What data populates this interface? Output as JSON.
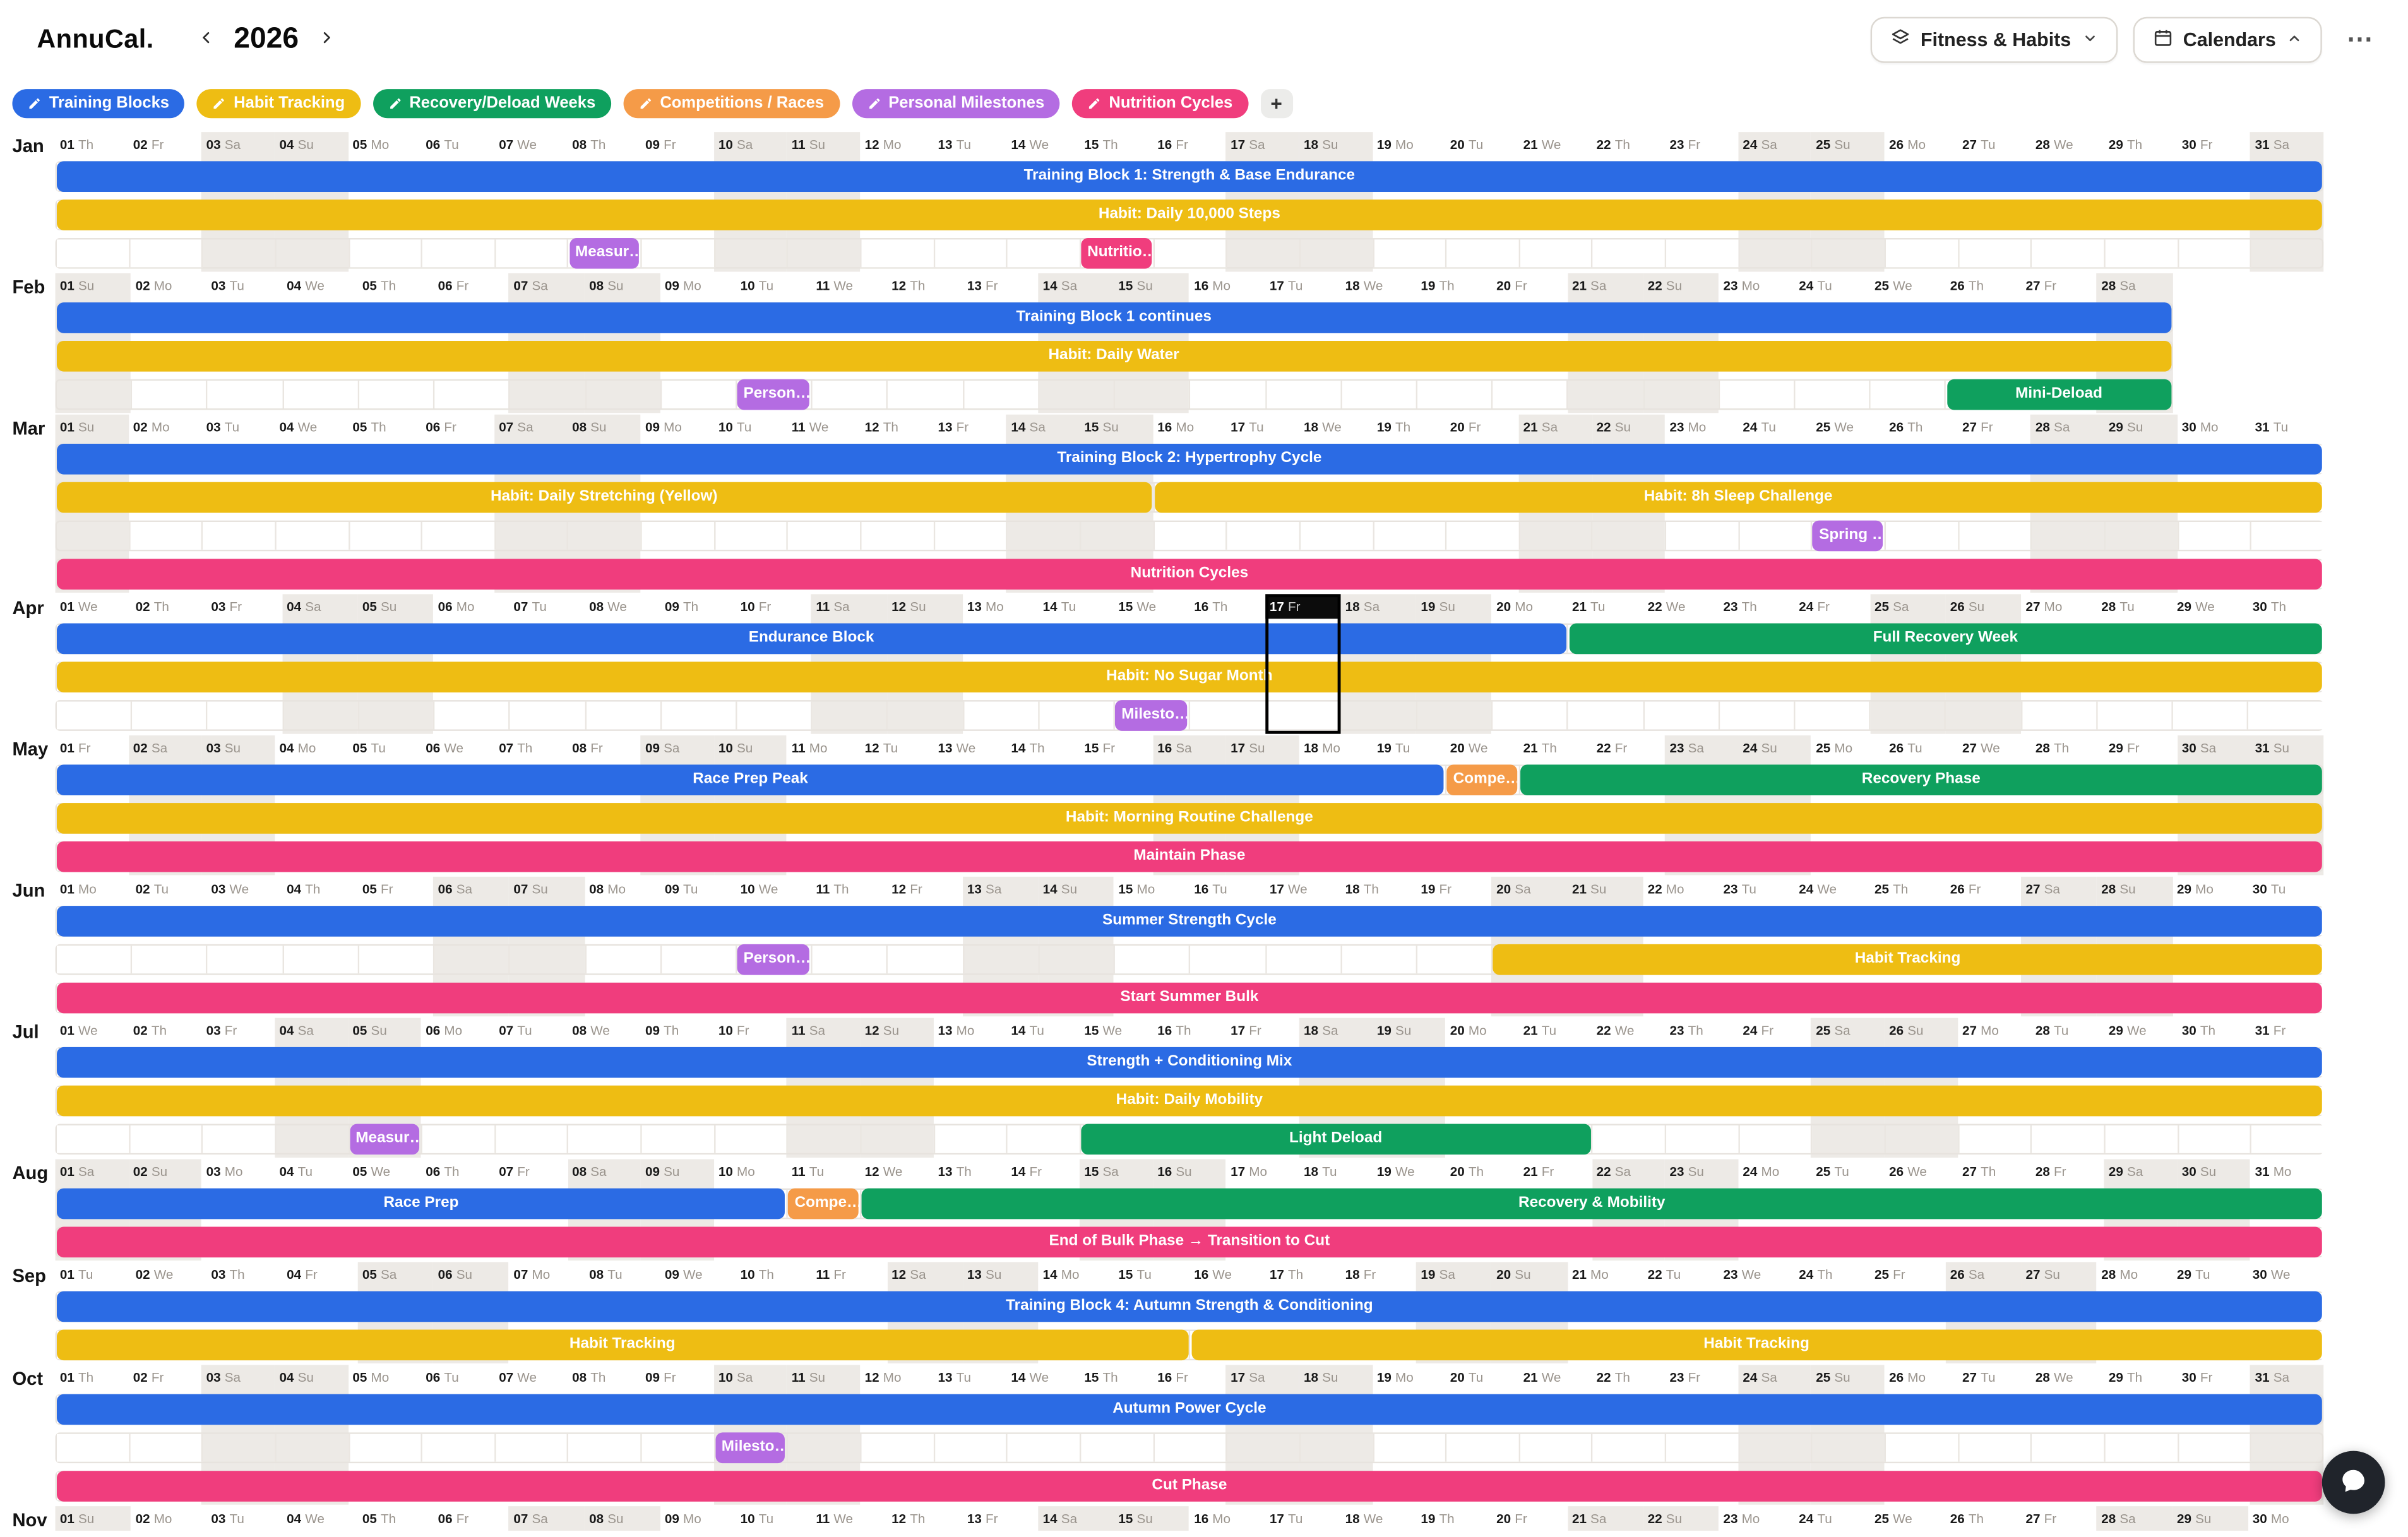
{
  "app": {
    "name": "AnnuCal.",
    "year": "2026"
  },
  "topbar": {
    "view_selector": "Fitness & Habits",
    "calendars": "Calendars",
    "more": "⋯"
  },
  "legend": {
    "add": "+",
    "items": [
      {
        "id": "training",
        "label": "Training Blocks"
      },
      {
        "id": "habit",
        "label": "Habit Tracking"
      },
      {
        "id": "recovery",
        "label": "Recovery/Deload Weeks"
      },
      {
        "id": "competition",
        "label": "Competitions / Races"
      },
      {
        "id": "milestone",
        "label": "Personal Milestones"
      },
      {
        "id": "nutrition",
        "label": "Nutrition Cycles"
      }
    ]
  },
  "colors": {
    "training": "#2b6be4",
    "habit": "#eebd13",
    "recovery": "#0fa05e",
    "competition": "#f59b48",
    "milestone": "#b46ce2",
    "nutrition": "#f03d7d"
  },
  "weekdays": [
    "Su",
    "Mo",
    "Tu",
    "We",
    "Th",
    "Fr",
    "Sa"
  ],
  "selected_date": {
    "month": "Apr",
    "day": 17
  },
  "months": [
    {
      "name": "Jan",
      "days": 31,
      "start": 4,
      "lanes": 3,
      "events": [
        {
          "lane": 0,
          "s": 1,
          "e": 31,
          "c": "training",
          "t": "Training Block 1: Strength & Base Endurance"
        },
        {
          "lane": 1,
          "s": 1,
          "e": 31,
          "c": "habit",
          "t": "Habit: Daily 10,000 Steps"
        },
        {
          "lane": 2,
          "s": 8,
          "e": 8,
          "c": "milestone",
          "t": "Measur…"
        },
        {
          "lane": 2,
          "s": 15,
          "e": 15,
          "c": "nutrition",
          "t": "Nutritio…"
        }
      ]
    },
    {
      "name": "Feb",
      "days": 28,
      "start": 0,
      "lanes": 3,
      "events": [
        {
          "lane": 0,
          "s": 1,
          "e": 28,
          "c": "training",
          "t": "Training Block 1 continues"
        },
        {
          "lane": 1,
          "s": 1,
          "e": 28,
          "c": "habit",
          "t": "Habit: Daily Water"
        },
        {
          "lane": 2,
          "s": 10,
          "e": 10,
          "c": "milestone",
          "t": "Person…"
        },
        {
          "lane": 2,
          "s": 26,
          "e": 28,
          "c": "recovery",
          "t": "Mini-Deload"
        }
      ]
    },
    {
      "name": "Mar",
      "days": 31,
      "start": 0,
      "lanes": 4,
      "events": [
        {
          "lane": 0,
          "s": 1,
          "e": 31,
          "c": "training",
          "t": "Training Block 2: Hypertrophy Cycle"
        },
        {
          "lane": 1,
          "s": 1,
          "e": 15,
          "c": "habit",
          "t": "Habit: Daily Stretching (Yellow)"
        },
        {
          "lane": 1,
          "s": 16,
          "e": 31,
          "c": "habit",
          "t": "Habit: 8h Sleep Challenge"
        },
        {
          "lane": 2,
          "s": 25,
          "e": 25,
          "c": "milestone",
          "t": "Spring …"
        },
        {
          "lane": 3,
          "s": 1,
          "e": 31,
          "c": "nutrition",
          "t": "Nutrition Cycles"
        }
      ]
    },
    {
      "name": "Apr",
      "days": 30,
      "start": 3,
      "lanes": 3,
      "selected_day": 17,
      "events": [
        {
          "lane": 0,
          "s": 1,
          "e": 20,
          "c": "training",
          "t": "Endurance Block"
        },
        {
          "lane": 0,
          "s": 21,
          "e": 30,
          "c": "recovery",
          "t": "Full Recovery Week"
        },
        {
          "lane": 1,
          "s": 1,
          "e": 30,
          "c": "habit",
          "t": "Habit: No Sugar Month"
        },
        {
          "lane": 2,
          "s": 15,
          "e": 15,
          "c": "milestone",
          "t": "Milesto…"
        }
      ]
    },
    {
      "name": "May",
      "days": 31,
      "start": 5,
      "lanes": 3,
      "events": [
        {
          "lane": 0,
          "s": 1,
          "e": 19,
          "c": "training",
          "t": "Race Prep Peak"
        },
        {
          "lane": 0,
          "s": 20,
          "e": 20,
          "c": "competition",
          "t": "Compe…"
        },
        {
          "lane": 0,
          "s": 21,
          "e": 31,
          "c": "recovery",
          "t": "Recovery Phase"
        },
        {
          "lane": 1,
          "s": 1,
          "e": 31,
          "c": "habit",
          "t": "Habit: Morning Routine Challenge"
        },
        {
          "lane": 2,
          "s": 1,
          "e": 31,
          "c": "nutrition",
          "t": "Maintain Phase"
        }
      ]
    },
    {
      "name": "Jun",
      "days": 30,
      "start": 1,
      "lanes": 3,
      "events": [
        {
          "lane": 0,
          "s": 1,
          "e": 30,
          "c": "training",
          "t": "Summer Strength Cycle"
        },
        {
          "lane": 1,
          "s": 10,
          "e": 10,
          "c": "milestone",
          "t": "Person…"
        },
        {
          "lane": 1,
          "s": 20,
          "e": 30,
          "c": "habit",
          "t": "Habit Tracking"
        },
        {
          "lane": 2,
          "s": 1,
          "e": 30,
          "c": "nutrition",
          "t": "Start Summer Bulk"
        }
      ]
    },
    {
      "name": "Jul",
      "days": 31,
      "start": 3,
      "lanes": 3,
      "events": [
        {
          "lane": 0,
          "s": 1,
          "e": 31,
          "c": "training",
          "t": "Strength + Conditioning Mix"
        },
        {
          "lane": 1,
          "s": 1,
          "e": 31,
          "c": "habit",
          "t": "Habit: Daily Mobility"
        },
        {
          "lane": 2,
          "s": 5,
          "e": 5,
          "c": "milestone",
          "t": "Measur…"
        },
        {
          "lane": 2,
          "s": 15,
          "e": 21,
          "c": "recovery",
          "t": "Light Deload"
        }
      ]
    },
    {
      "name": "Aug",
      "days": 31,
      "start": 6,
      "lanes": 2,
      "events": [
        {
          "lane": 0,
          "s": 1,
          "e": 10,
          "c": "training",
          "t": "Race Prep"
        },
        {
          "lane": 0,
          "s": 11,
          "e": 11,
          "c": "competition",
          "t": "Compe…"
        },
        {
          "lane": 0,
          "s": 12,
          "e": 31,
          "c": "recovery",
          "t": "Recovery & Mobility"
        },
        {
          "lane": 1,
          "s": 1,
          "e": 31,
          "c": "nutrition",
          "t": "End of Bulk Phase → Transition to Cut"
        }
      ]
    },
    {
      "name": "Sep",
      "days": 30,
      "start": 2,
      "lanes": 2,
      "events": [
        {
          "lane": 0,
          "s": 1,
          "e": 30,
          "c": "training",
          "t": "Training Block 4: Autumn Strength & Conditioning"
        },
        {
          "lane": 1,
          "s": 1,
          "e": 15,
          "c": "habit",
          "t": "Habit Tracking"
        },
        {
          "lane": 1,
          "s": 16,
          "e": 30,
          "c": "habit",
          "t": "Habit Tracking"
        }
      ]
    },
    {
      "name": "Oct",
      "days": 31,
      "start": 4,
      "lanes": 3,
      "events": [
        {
          "lane": 0,
          "s": 1,
          "e": 31,
          "c": "training",
          "t": "Autumn Power Cycle"
        },
        {
          "lane": 1,
          "s": 10,
          "e": 10,
          "c": "milestone",
          "t": "Milesto…"
        },
        {
          "lane": 2,
          "s": 1,
          "e": 31,
          "c": "nutrition",
          "t": "Cut Phase"
        }
      ]
    },
    {
      "name": "Nov",
      "days": 30,
      "start": 0,
      "lanes": 0,
      "events": []
    }
  ]
}
